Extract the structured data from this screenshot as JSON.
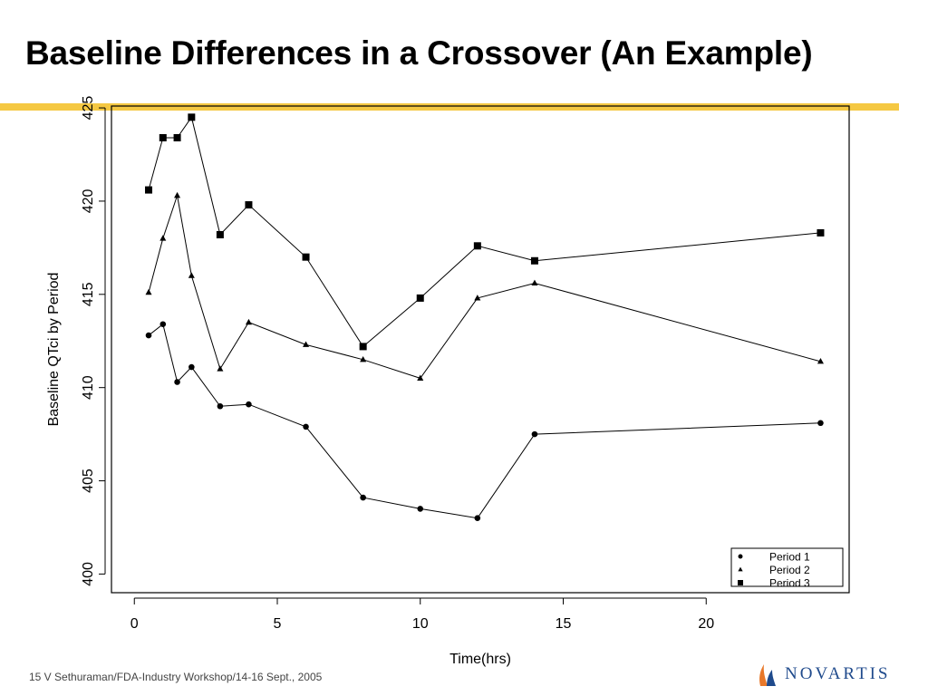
{
  "slide": {
    "title": "Baseline Differences in a Crossover (An Example)",
    "footer": "15 V Sethuraman/FDA-Industry Workshop/14-16 Sept., 2005",
    "brand": "NOVARTIS",
    "accent_color": "#f5c842",
    "brand_color": "#1f4a8c",
    "brand_logo_colors": [
      "#e8782a",
      "#1f4a8c"
    ]
  },
  "chart_data": {
    "type": "line",
    "title": "",
    "xlabel": "Time(hrs)",
    "ylabel": "Baseline QTci by Period",
    "xlim": [
      -0.8,
      25
    ],
    "ylim": [
      399,
      425.1
    ],
    "xticks": [
      0,
      5,
      10,
      15,
      20
    ],
    "yticks": [
      400,
      405,
      410,
      415,
      420,
      425
    ],
    "grid": false,
    "legend_position": "bottom-right",
    "x": [
      0.5,
      1,
      1.5,
      2,
      3,
      4,
      6,
      8,
      10,
      12,
      14,
      24
    ],
    "series": [
      {
        "name": "Period 1",
        "marker": "circle",
        "x": [
          0.5,
          1,
          1.5,
          2,
          3,
          4,
          6,
          8,
          10,
          12,
          14,
          24
        ],
        "values": [
          412.8,
          413.4,
          410.3,
          411.1,
          409.0,
          409.1,
          407.9,
          404.1,
          403.5,
          403.0,
          407.5,
          408.1
        ]
      },
      {
        "name": "Period 2",
        "marker": "triangle",
        "x": [
          0.5,
          1,
          1.5,
          2,
          3,
          4,
          6,
          8,
          10,
          12,
          14,
          24
        ],
        "values": [
          415.1,
          418.0,
          420.3,
          416.0,
          411.0,
          413.5,
          412.3,
          411.5,
          410.5,
          414.8,
          415.6,
          411.4
        ]
      },
      {
        "name": "Period 3",
        "marker": "square",
        "x": [
          0.5,
          1,
          1.5,
          2,
          3,
          4,
          6,
          8,
          10,
          12,
          14,
          24
        ],
        "values": [
          420.6,
          423.4,
          423.4,
          424.5,
          418.2,
          419.8,
          417.0,
          412.2,
          414.8,
          417.6,
          416.8,
          418.3
        ]
      }
    ]
  }
}
